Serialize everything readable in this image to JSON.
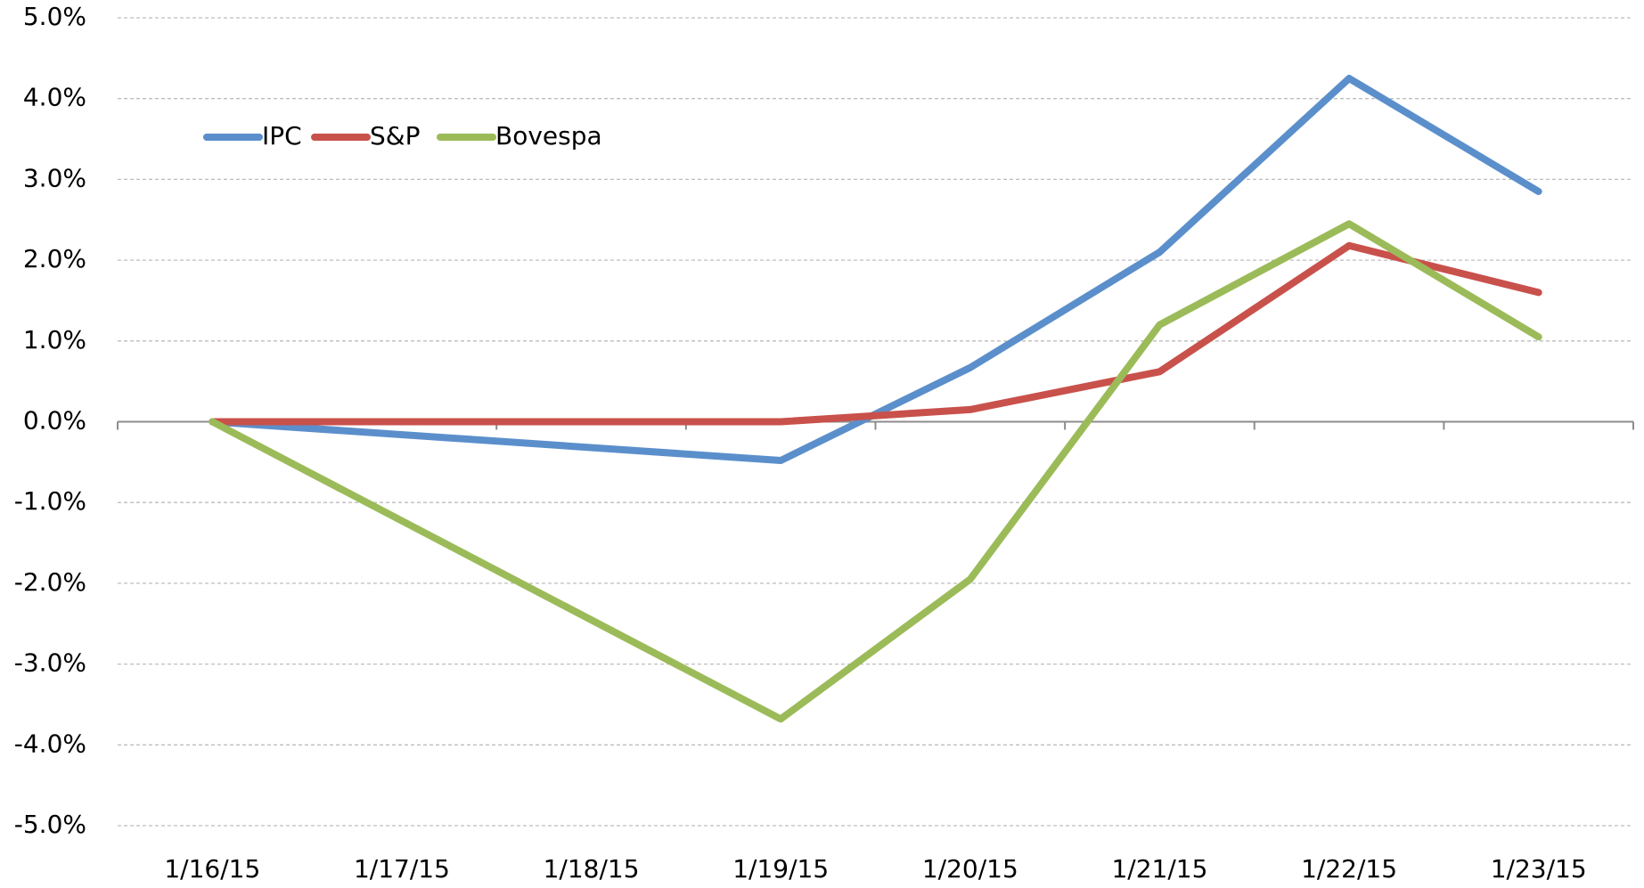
{
  "chart_data": {
    "type": "line",
    "xticks": [
      "1/16/15",
      "1/17/15",
      "1/18/15",
      "1/19/15",
      "1/20/15",
      "1/21/15",
      "1/22/15",
      "1/23/15"
    ],
    "x": [
      "1/16/15",
      "1/19/15",
      "1/20/15",
      "1/21/15",
      "1/22/15",
      "1/23/15"
    ],
    "series": [
      {
        "name": "IPC",
        "color": "#5b8fcb",
        "values": [
          0,
          -0.48,
          0.67,
          2.1,
          4.25,
          2.85
        ]
      },
      {
        "name": "S&P",
        "color": "#c9514b",
        "values": [
          0,
          0,
          0.15,
          0.62,
          2.18,
          1.6
        ]
      },
      {
        "name": "Bovespa",
        "color": "#9bbb59",
        "values": [
          0,
          -3.68,
          -1.95,
          1.2,
          2.45,
          1.05
        ]
      }
    ],
    "ylim": [
      -5,
      5
    ],
    "yticks": [
      {
        "value": 5,
        "label": "5.0%"
      },
      {
        "value": 4,
        "label": "4.0%"
      },
      {
        "value": 3,
        "label": "3.0%"
      },
      {
        "value": 2,
        "label": "2.0%"
      },
      {
        "value": 1,
        "label": "1.0%"
      },
      {
        "value": 0,
        "label": "0.0%"
      },
      {
        "value": -1,
        "label": "-1.0%"
      },
      {
        "value": -2,
        "label": "-2.0%"
      },
      {
        "value": -3,
        "label": "-3.0%"
      },
      {
        "value": -4,
        "label": "-4.0%"
      },
      {
        "value": -5,
        "label": "-5.0%"
      }
    ],
    "grid": true,
    "legend": "top-left"
  }
}
